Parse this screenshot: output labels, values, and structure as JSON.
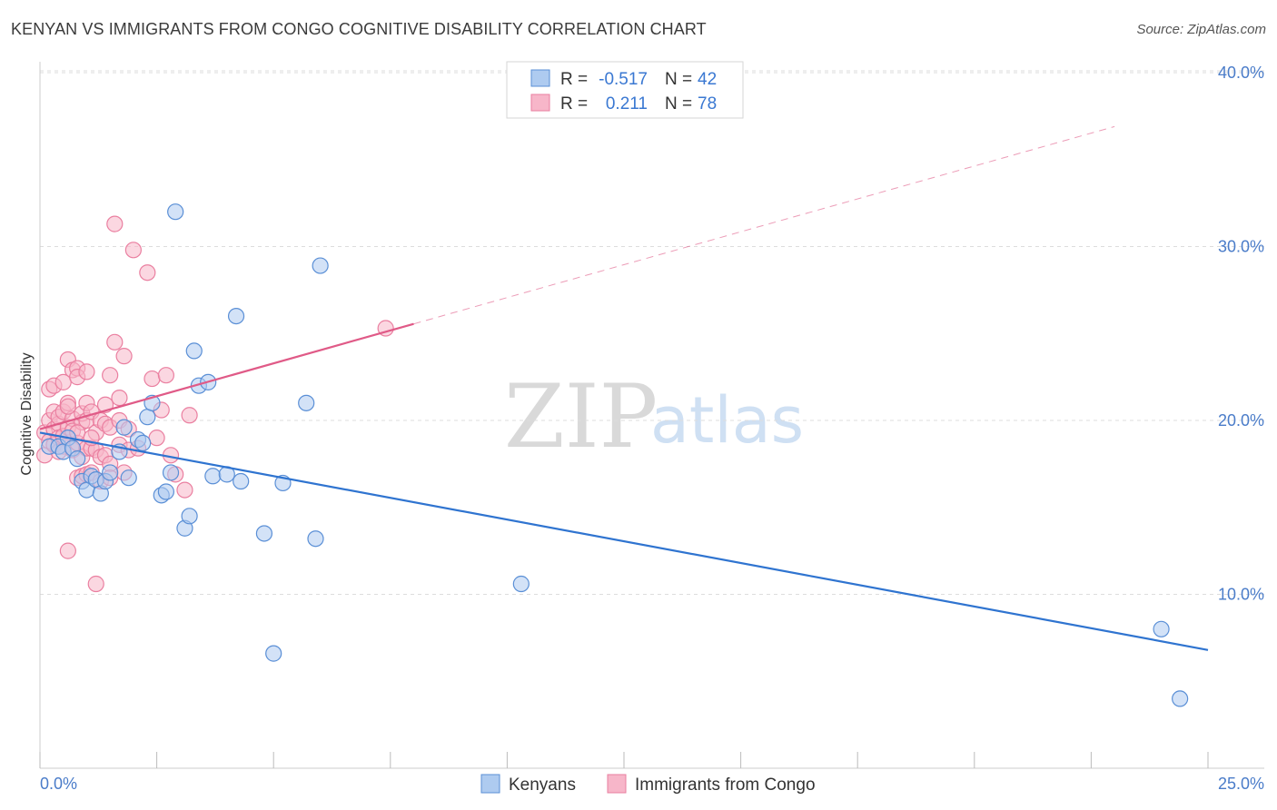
{
  "title": "KENYAN VS IMMIGRANTS FROM CONGO COGNITIVE DISABILITY CORRELATION CHART",
  "source": "Source: ZipAtlas.com",
  "watermark": {
    "zip": "ZIP",
    "atlas": "atlas"
  },
  "colors": {
    "blue_fill": "#aecbf0",
    "blue_stroke": "#5a8fd6",
    "blue_line": "#2f74d0",
    "pink_fill": "#f7b6c9",
    "pink_stroke": "#ea7fa0",
    "pink_line": "#e05a87",
    "axis_label": "#4a7cc9",
    "grid": "#dddddd"
  },
  "legend": {
    "r_label": "R =",
    "n_label": "N =",
    "series": [
      {
        "r": "-0.517",
        "n": "42"
      },
      {
        "r": "0.211",
        "n": "78"
      }
    ]
  },
  "bottom_legend": [
    "Kenyans",
    "Immigrants from Congo"
  ],
  "chart_data": {
    "type": "scatter",
    "title": "KENYAN VS IMMIGRANTS FROM CONGO COGNITIVE DISABILITY CORRELATION CHART",
    "xlabel": "",
    "ylabel": "Cognitive Disability",
    "xlim": [
      0,
      25
    ],
    "ylim": [
      0,
      40
    ],
    "x_tick_labels": [
      "0.0%",
      "25.0%"
    ],
    "y_ticks": [
      10,
      20,
      30,
      40
    ],
    "y_tick_labels": [
      "10.0%",
      "20.0%",
      "30.0%",
      "40.0%"
    ],
    "grid": true,
    "series": [
      {
        "name": "Kenyans",
        "r": -0.517,
        "n": 42,
        "trend": {
          "x0": 0,
          "y0": 19.3,
          "x1": 25,
          "y1": 6.8,
          "dash_from": null
        },
        "points": [
          [
            0.2,
            18.5
          ],
          [
            0.4,
            18.5
          ],
          [
            0.5,
            18.2
          ],
          [
            0.6,
            19.0
          ],
          [
            0.7,
            18.4
          ],
          [
            0.8,
            17.8
          ],
          [
            0.9,
            16.5
          ],
          [
            1.0,
            16.0
          ],
          [
            1.1,
            16.8
          ],
          [
            1.2,
            16.6
          ],
          [
            1.3,
            15.8
          ],
          [
            1.4,
            16.5
          ],
          [
            1.5,
            17.0
          ],
          [
            1.7,
            18.2
          ],
          [
            1.8,
            19.6
          ],
          [
            1.9,
            16.7
          ],
          [
            2.1,
            18.9
          ],
          [
            2.2,
            18.7
          ],
          [
            2.3,
            20.2
          ],
          [
            2.4,
            21.0
          ],
          [
            2.6,
            15.7
          ],
          [
            2.7,
            15.9
          ],
          [
            2.8,
            17.0
          ],
          [
            2.9,
            32.0
          ],
          [
            3.1,
            13.8
          ],
          [
            3.2,
            14.5
          ],
          [
            3.3,
            24.0
          ],
          [
            3.4,
            22.0
          ],
          [
            3.6,
            22.2
          ],
          [
            3.7,
            16.8
          ],
          [
            4.0,
            16.9
          ],
          [
            4.2,
            26.0
          ],
          [
            4.3,
            16.5
          ],
          [
            4.8,
            13.5
          ],
          [
            5.0,
            6.6
          ],
          [
            5.2,
            16.4
          ],
          [
            5.7,
            21.0
          ],
          [
            5.9,
            13.2
          ],
          [
            6.0,
            28.9
          ],
          [
            10.3,
            10.6
          ],
          [
            24.0,
            8.0
          ],
          [
            24.4,
            4.0
          ]
        ]
      },
      {
        "name": "Immigrants from Congo",
        "r": 0.211,
        "n": 78,
        "trend": {
          "x0": 0,
          "y0": 19.5,
          "x1": 23,
          "y1": 36.9,
          "dash_from": 8.0
        },
        "points": [
          [
            0.1,
            18.0
          ],
          [
            0.1,
            19.3
          ],
          [
            0.2,
            20.0
          ],
          [
            0.2,
            18.8
          ],
          [
            0.2,
            21.8
          ],
          [
            0.3,
            19.5
          ],
          [
            0.3,
            20.5
          ],
          [
            0.3,
            22.0
          ],
          [
            0.3,
            18.6
          ],
          [
            0.4,
            19.8
          ],
          [
            0.4,
            20.2
          ],
          [
            0.4,
            19.0
          ],
          [
            0.5,
            22.2
          ],
          [
            0.5,
            20.5
          ],
          [
            0.5,
            18.5
          ],
          [
            0.5,
            19.1
          ],
          [
            0.6,
            23.5
          ],
          [
            0.6,
            21.0
          ],
          [
            0.6,
            19.6
          ],
          [
            0.6,
            12.5
          ],
          [
            0.7,
            22.9
          ],
          [
            0.7,
            20.1
          ],
          [
            0.7,
            18.3
          ],
          [
            0.7,
            19.4
          ],
          [
            0.8,
            23.0
          ],
          [
            0.8,
            22.5
          ],
          [
            0.8,
            18.7
          ],
          [
            0.8,
            16.7
          ],
          [
            0.9,
            16.8
          ],
          [
            0.9,
            17.9
          ],
          [
            0.9,
            19.9
          ],
          [
            0.9,
            20.4
          ],
          [
            1.0,
            22.8
          ],
          [
            1.0,
            21.0
          ],
          [
            1.0,
            18.4
          ],
          [
            1.0,
            16.9
          ],
          [
            1.0,
            20.0
          ],
          [
            1.1,
            20.5
          ],
          [
            1.1,
            18.4
          ],
          [
            1.1,
            17.0
          ],
          [
            1.2,
            10.6
          ],
          [
            1.2,
            19.3
          ],
          [
            1.2,
            18.3
          ],
          [
            1.3,
            20.0
          ],
          [
            1.3,
            16.5
          ],
          [
            1.3,
            17.9
          ],
          [
            1.4,
            19.8
          ],
          [
            1.4,
            18.0
          ],
          [
            1.5,
            22.6
          ],
          [
            1.5,
            19.6
          ],
          [
            1.5,
            17.5
          ],
          [
            1.5,
            16.7
          ],
          [
            1.6,
            31.3
          ],
          [
            1.6,
            24.5
          ],
          [
            1.7,
            21.3
          ],
          [
            1.7,
            20.0
          ],
          [
            1.7,
            18.6
          ],
          [
            1.8,
            17.0
          ],
          [
            1.8,
            23.7
          ],
          [
            1.9,
            19.5
          ],
          [
            1.9,
            18.3
          ],
          [
            2.0,
            29.8
          ],
          [
            2.1,
            18.4
          ],
          [
            2.3,
            28.5
          ],
          [
            2.4,
            22.4
          ],
          [
            2.5,
            19.0
          ],
          [
            2.6,
            20.6
          ],
          [
            2.7,
            22.6
          ],
          [
            2.8,
            18.0
          ],
          [
            2.9,
            16.9
          ],
          [
            3.1,
            16.0
          ],
          [
            3.2,
            20.3
          ],
          [
            0.4,
            18.2
          ],
          [
            0.6,
            20.8
          ],
          [
            0.8,
            19.3
          ],
          [
            1.1,
            19.0
          ],
          [
            1.4,
            20.9
          ],
          [
            7.4,
            25.3
          ]
        ]
      }
    ]
  }
}
